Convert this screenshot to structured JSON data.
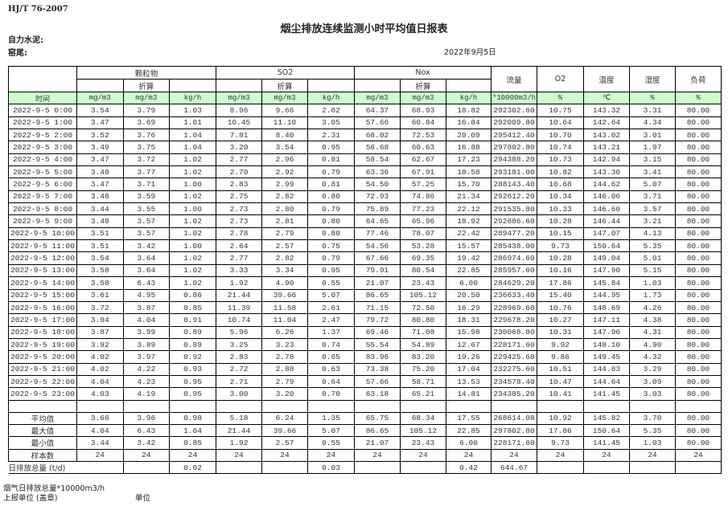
{
  "header": {
    "standard": "HJ/T  76-2007",
    "title": "烟尘排放连续监测小时平均值日报表",
    "company": "自力水泥:",
    "kiln": "窑尾:",
    "date": "2022年9月5日"
  },
  "table": {
    "group_headers": [
      "颗粒物",
      "SO2",
      "Nox"
    ],
    "single_headers": [
      "流量",
      "O2",
      "温度",
      "湿度",
      "负荷"
    ],
    "converted_label": "折算",
    "units": [
      "时间",
      "mg/m3",
      "mg/m3",
      "kg/h",
      "mg/m3",
      "mg/m3",
      "kg/h",
      "mg/m3",
      "mg/m3",
      "kg/h",
      "*10000m3/h",
      "%",
      "℃",
      "%",
      "%"
    ],
    "rows": [
      [
        "2022-9-5 0:00",
        "3.54",
        "3.79",
        "1.03",
        "8.96",
        "9.66",
        "2.62",
        "64.37",
        "68.93",
        "18.82",
        "292302.60",
        "10.75",
        "143.32",
        "3.31",
        "80.00"
      ],
      [
        "2022-9-5 1:00",
        "3.47",
        "3.69",
        "1.01",
        "10.45",
        "11.10",
        "3.05",
        "57.66",
        "60.84",
        "16.84",
        "292009.80",
        "10.64",
        "142.64",
        "4.34",
        "80.00"
      ],
      [
        "2022-9-5 2:00",
        "3.52",
        "3.76",
        "1.04",
        "7.81",
        "8.40",
        "2.31",
        "68.02",
        "72.53",
        "20.09",
        "295412.40",
        "10.70",
        "143.02",
        "3.01",
        "80.00"
      ],
      [
        "2022-9-5 3:00",
        "3.49",
        "3.75",
        "1.04",
        "3.20",
        "3.54",
        "0.95",
        "56.68",
        "60.63",
        "16.88",
        "297802.80",
        "10.74",
        "143.21",
        "1.97",
        "80.00"
      ],
      [
        "2022-9-5 4:00",
        "3.47",
        "3.72",
        "1.02",
        "2.77",
        "2.96",
        "0.81",
        "58.54",
        "62.67",
        "17.23",
        "294388.20",
        "10.73",
        "142.94",
        "3.15",
        "80.00"
      ],
      [
        "2022-9-5 5:00",
        "3.48",
        "3.77",
        "1.02",
        "2.70",
        "2.92",
        "0.79",
        "63.36",
        "67.91",
        "18.58",
        "293181.00",
        "10.82",
        "143.30",
        "3.41",
        "80.00"
      ],
      [
        "2022-9-5 6:00",
        "3.47",
        "3.71",
        "1.00",
        "2.83",
        "2.99",
        "0.81",
        "54.50",
        "57.25",
        "15.70",
        "288143.40",
        "10.68",
        "144.62",
        "5.07",
        "80.00"
      ],
      [
        "2022-9-5 7:00",
        "3.48",
        "3.59",
        "1.02",
        "2.75",
        "2.82",
        "0.80",
        "72.93",
        "74.86",
        "21.34",
        "292612.20",
        "10.34",
        "146.06",
        "3.71",
        "80.00"
      ],
      [
        "2022-9-5 8:00",
        "3.44",
        "3.55",
        "1.00",
        "2.73",
        "2.80",
        "0.79",
        "75.89",
        "77.23",
        "22.12",
        "291535.80",
        "10.33",
        "146.60",
        "3.57",
        "80.00"
      ],
      [
        "2022-9-5 9:00",
        "3.48",
        "3.57",
        "1.02",
        "2.73",
        "2.81",
        "0.80",
        "64.65",
        "65.96",
        "18.92",
        "292686.60",
        "10.28",
        "146.44",
        "3.21",
        "80.00"
      ],
      [
        "2022-9-5 10:00",
        "3.51",
        "3.57",
        "1.02",
        "2.78",
        "2.79",
        "0.80",
        "77.46",
        "78.07",
        "22.42",
        "289477.20",
        "10.15",
        "147.07",
        "4.13",
        "80.00"
      ],
      [
        "2022-9-5 11:00",
        "3.51",
        "3.42",
        "1.00",
        "2.64",
        "2.57",
        "0.75",
        "54.56",
        "53.28",
        "15.57",
        "285438.00",
        "9.73",
        "150.64",
        "5.35",
        "80.00"
      ],
      [
        "2022-9-5 12:00",
        "3.54",
        "3.64",
        "1.02",
        "2.77",
        "2.82",
        "0.79",
        "67.66",
        "69.35",
        "19.42",
        "286974.60",
        "10.28",
        "149.04",
        "5.01",
        "80.00"
      ],
      [
        "2022-9-5 13:00",
        "3.58",
        "3.64",
        "1.02",
        "3.33",
        "3.34",
        "0.95",
        "79.91",
        "80.54",
        "22.85",
        "285957.60",
        "10.16",
        "147.90",
        "5.15",
        "80.00"
      ],
      [
        "2022-9-5 14:00",
        "3.58",
        "6.43",
        "1.02",
        "1.92",
        "4.90",
        "0.55",
        "21.07",
        "23.43",
        "6.00",
        "284629.20",
        "17.86",
        "145.84",
        "1.03",
        "80.00"
      ],
      [
        "2022-9-5 15:00",
        "3.61",
        "4.95",
        "0.86",
        "21.44",
        "39.66",
        "5.07",
        "86.65",
        "105.12",
        "20.50",
        "236633.40",
        "15.40",
        "144.95",
        "1.73",
        "80.00"
      ],
      [
        "2022-9-5 16:00",
        "3.72",
        "3.87",
        "0.85",
        "11.39",
        "11.58",
        "2.61",
        "71.15",
        "72.50",
        "16.29",
        "228969.60",
        "10.76",
        "148.69",
        "4.26",
        "80.00"
      ],
      [
        "2022-9-5 17:00",
        "3.94",
        "4.04",
        "0.91",
        "10.74",
        "11.04",
        "2.47",
        "79.72",
        "80.80",
        "18.31",
        "229678.20",
        "10.27",
        "147.11",
        "4.38",
        "80.00"
      ],
      [
        "2022-9-5 18:00",
        "3.87",
        "3.99",
        "0.89",
        "5.96",
        "6.26",
        "1.37",
        "69.46",
        "71.08",
        "15.98",
        "230068.80",
        "10.31",
        "147.96",
        "4.31",
        "80.00"
      ],
      [
        "2022-9-5 19:00",
        "3.92",
        "3.89",
        "0.89",
        "3.25",
        "3.23",
        "0.74",
        "55.54",
        "54.89",
        "12.67",
        "228171.60",
        "9.92",
        "148.10",
        "4.90",
        "80.00"
      ],
      [
        "2022-9-5 20:00",
        "4.02",
        "3.97",
        "0.92",
        "2.83",
        "2.78",
        "0.65",
        "83.96",
        "83.20",
        "19.26",
        "229425.60",
        "9.86",
        "149.45",
        "4.32",
        "80.00"
      ],
      [
        "2022-9-5 21:00",
        "4.02",
        "4.22",
        "0.93",
        "2.72",
        "2.88",
        "0.63",
        "73.38",
        "75.20",
        "17.04",
        "232275.60",
        "10.51",
        "144.83",
        "3.29",
        "80.00"
      ],
      [
        "2022-9-5 22:00",
        "4.04",
        "4.23",
        "0.95",
        "2.71",
        "2.79",
        "0.64",
        "57.66",
        "58.71",
        "13.53",
        "234578.40",
        "10.47",
        "144.64",
        "3.09",
        "80.00"
      ],
      [
        "2022-9-5 23:00",
        "4.03",
        "4.19",
        "0.95",
        "3.00",
        "3.20",
        "0.70",
        "63.18",
        "65.21",
        "14.81",
        "234385.20",
        "10.41",
        "141.45",
        "3.03",
        "80.00"
      ]
    ],
    "stats": [
      [
        "平均值",
        "3.66",
        "3.96",
        "0.98",
        "5.18",
        "6.24",
        "1.35",
        "65.75",
        "68.34",
        "17.55",
        "268614.08",
        "10.92",
        "145.82",
        "3.70",
        "80.00"
      ],
      [
        "最大值",
        "4.04",
        "6.43",
        "1.04",
        "21.44",
        "39.66",
        "5.07",
        "86.65",
        "105.12",
        "22.85",
        "297802.80",
        "17.86",
        "150.64",
        "5.35",
        "80.00"
      ],
      [
        "最小值",
        "3.44",
        "3.42",
        "0.85",
        "1.92",
        "2.57",
        "0.55",
        "21.07",
        "23.43",
        "6.00",
        "228171.60",
        "9.73",
        "141.45",
        "1.03",
        "80.00"
      ],
      [
        "样本数",
        "24",
        "24",
        "24",
        "24",
        "24",
        "24",
        "24",
        "24",
        "24",
        "24",
        "24",
        "24",
        "24",
        "24"
      ]
    ],
    "daily_total": {
      "label": "日排放总量 (t/d)",
      "values": [
        "",
        "0.02",
        "",
        "",
        "0.03",
        "",
        "",
        "0.42",
        "644.67",
        "",
        "",
        "",
        ""
      ]
    }
  },
  "footer": {
    "flue_gas_total": "烟气日排放总量*10000m3/h",
    "reporting_unit": "上报单位 (盖章)",
    "unit": "单位"
  },
  "colors": {
    "unit_row_bg": "#ccffcc",
    "border": "#000000"
  }
}
